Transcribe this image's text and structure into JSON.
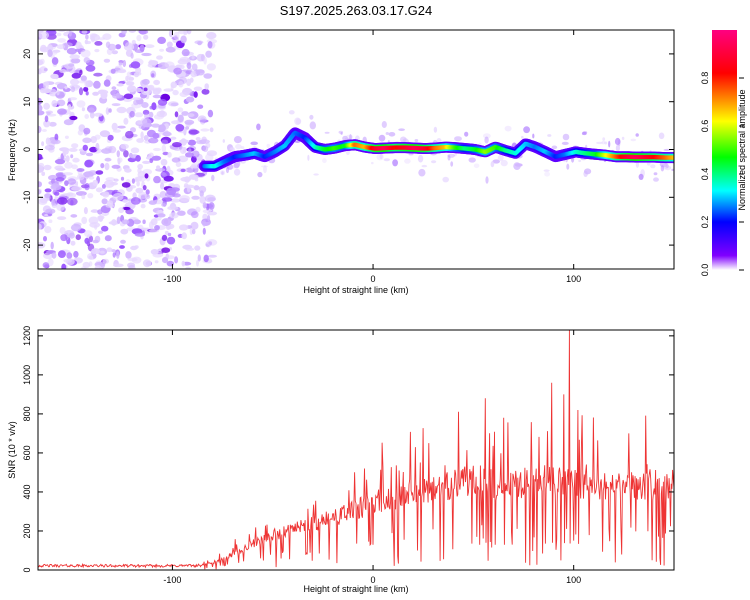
{
  "title": "S197.2025.263.03.17.G24",
  "chart_data": [
    {
      "type": "heatmap",
      "title": "S197.2025.263.03.17.G24",
      "xlabel": "Height of straight line (km)",
      "ylabel": "Frequency (Hz)",
      "xlim": [
        -167,
        150
      ],
      "ylim": [
        -25,
        25
      ],
      "x_ticks": [
        -100,
        0,
        100
      ],
      "x_tick_labels": [
        "-100",
        "0",
        "100"
      ],
      "y_ticks": [
        -20,
        -10,
        0,
        10,
        20
      ],
      "y_tick_labels": [
        "-20",
        "-10",
        "0",
        "10",
        "20"
      ],
      "colorbar": {
        "label": "Normalized spectral amplitude",
        "range": [
          0,
          1
        ],
        "ticks": [
          0,
          0.2,
          0.4,
          0.6,
          0.8
        ],
        "tick_labels": [
          "0.0",
          "0.2",
          "0.4",
          "0.6",
          "0.8"
        ],
        "colors": [
          "#ffffff",
          "#8000ff",
          "#0000ff",
          "#00ffff",
          "#00ff00",
          "#ffff00",
          "#ff0000",
          "#ff0080"
        ]
      },
      "noise_region_x": [
        -167,
        -80
      ],
      "ridge": {
        "x": [
          -84,
          -79,
          -74,
          -69,
          -64,
          -59,
          -54,
          -49,
          -44,
          -39,
          -34,
          -29,
          -24,
          -19,
          -14,
          -9,
          -4,
          1,
          6,
          11,
          16,
          21,
          26,
          31,
          36,
          41,
          46,
          51,
          56,
          61,
          66,
          71,
          76,
          81,
          86,
          91,
          96,
          101,
          106,
          111,
          116,
          121,
          126,
          131,
          136,
          141,
          146,
          150
        ],
        "y": [
          -3.5,
          -3.5,
          -2.5,
          -1.5,
          -1.2,
          -0.8,
          -1.5,
          -0.5,
          0.8,
          3.5,
          2.5,
          0.5,
          0,
          0.3,
          0.8,
          1,
          0.5,
          0.2,
          0.3,
          0.4,
          0.4,
          0.3,
          0.2,
          0.3,
          0.5,
          0.4,
          0.2,
          0,
          -0.5,
          0.5,
          -0.2,
          -0.8,
          1.2,
          0.5,
          -0.5,
          -1.5,
          -1,
          -0.5,
          -0.8,
          -1,
          -1.2,
          -1.5,
          -1.5,
          -1.6,
          -1.6,
          -1.6,
          -1.7,
          -1.7
        ],
        "amplitude": [
          0.35,
          0.45,
          0.35,
          0.3,
          0.35,
          0.4,
          0.3,
          0.35,
          0.4,
          0.35,
          0.3,
          0.45,
          0.55,
          0.6,
          0.55,
          0.8,
          0.75,
          0.9,
          0.95,
          0.85,
          0.9,
          0.95,
          0.9,
          0.8,
          0.75,
          0.6,
          0.5,
          0.55,
          0.65,
          0.6,
          0.5,
          0.45,
          0.4,
          0.35,
          0.4,
          0.3,
          0.35,
          0.45,
          0.5,
          0.55,
          0.7,
          0.8,
          0.9,
          0.95,
          0.9,
          0.85,
          0.8,
          0.75
        ]
      }
    },
    {
      "type": "line",
      "xlabel": "Height of straight line (km)",
      "ylabel": "SNR (10 * v/v)",
      "xlim": [
        -167,
        150
      ],
      "ylim": [
        0,
        1230
      ],
      "x_ticks": [
        -100,
        0,
        100
      ],
      "x_tick_labels": [
        "-100",
        "0",
        "100"
      ],
      "y_ticks": [
        0,
        200,
        400,
        600,
        800,
        1000,
        1200
      ],
      "y_tick_labels": [
        "0",
        "200",
        "400",
        "600",
        "800",
        "1000",
        "1200"
      ],
      "line_color": "#ee3333",
      "envelope": {
        "x": [
          -167,
          -140,
          -110,
          -85,
          -75,
          -65,
          -55,
          -45,
          -35,
          -25,
          -15,
          -5,
          5,
          15,
          25,
          35,
          45,
          55,
          65,
          75,
          85,
          95,
          105,
          115,
          125,
          135,
          145,
          150
        ],
        "y": [
          22,
          22,
          21,
          23,
          55,
          110,
          160,
          200,
          225,
          255,
          290,
          330,
          370,
          400,
          420,
          440,
          460,
          470,
          430,
          460,
          470,
          460,
          440,
          440,
          440,
          450,
          450,
          450
        ]
      },
      "peaks": [
        {
          "x": 56,
          "y": 880
        },
        {
          "x": 65,
          "y": 780
        },
        {
          "x": 89,
          "y": 960
        },
        {
          "x": 95,
          "y": 900
        },
        {
          "x": 98,
          "y": 1230
        },
        {
          "x": 102,
          "y": 820
        }
      ]
    }
  ]
}
